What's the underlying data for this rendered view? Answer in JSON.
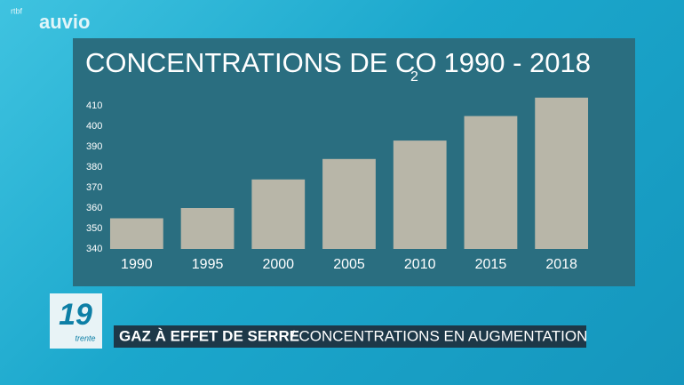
{
  "logo": {
    "brand": "rtbf",
    "product": "auvio"
  },
  "chart_data": {
    "type": "bar",
    "title": "CONCENTRATIONS DE CO",
    "title_subscript": "2",
    "period": "1990 - 2018",
    "categories": [
      "1990",
      "1995",
      "2000",
      "2005",
      "2010",
      "2015",
      "2018"
    ],
    "values": [
      355,
      360,
      374,
      384,
      393,
      405,
      414
    ],
    "color": "#b8b6a8",
    "ylim": [
      340,
      420
    ],
    "yticks": [
      340,
      350,
      360,
      370,
      380,
      390,
      400,
      410
    ],
    "grid": false
  },
  "program": {
    "number": "19",
    "name": "trente"
  },
  "banner": {
    "topic": "GAZ À EFFET DE SERRE",
    "headline": "/ CONCENTRATIONS EN AUGMENTATION"
  }
}
